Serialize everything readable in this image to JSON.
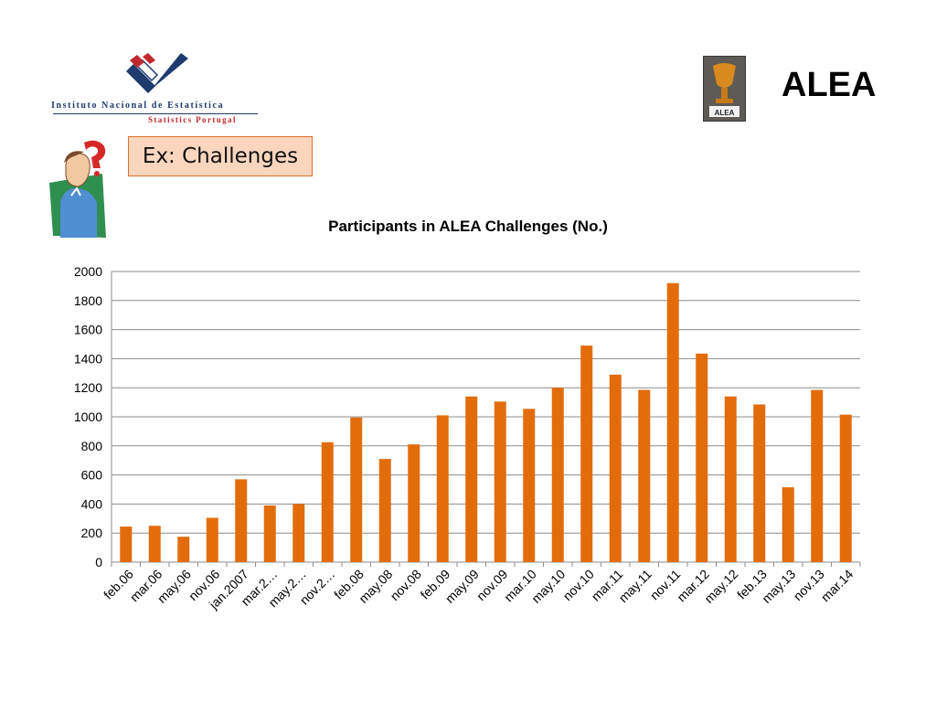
{
  "logo": {
    "org_name": "Instituto Nacional de Estatística",
    "org_subtitle": "Statistics Portugal"
  },
  "header": {
    "alea_title": "ALEA",
    "alea_badge_text": "ALEA"
  },
  "slide": {
    "tag": "Ex: Challenges"
  },
  "colors": {
    "bar": "#E36C0A",
    "logo_blue": "#1f3a6d",
    "logo_red": "#c0282d",
    "tag_fill": "#fbd6bf",
    "tag_border": "#e26e2a"
  },
  "icons": {
    "cartoon": "confused-person-icon",
    "badge": "alea-trophy-icon"
  },
  "chart_data": {
    "type": "bar",
    "title": "Participants in ALEA Challenges (No.)",
    "xlabel": "",
    "ylabel": "",
    "ylim": [
      0,
      2000
    ],
    "yticks": [
      0,
      200,
      400,
      600,
      800,
      1000,
      1200,
      1400,
      1600,
      1800,
      2000
    ],
    "grid": true,
    "legend": "none",
    "categories": [
      "feb.06",
      "mar.06",
      "may.06",
      "nov.06",
      "jan.2007",
      "mar.2…",
      "may.2…",
      "nov.2…",
      "feb.08",
      "may.08",
      "nov.08",
      "feb.09",
      "may.09",
      "nov.09",
      "mar.10",
      "may.10",
      "nov.10",
      "mar.11",
      "may.11",
      "nov.11",
      "mar.12",
      "may.12",
      "feb.13",
      "may.13",
      "nov.13",
      "mar.14"
    ],
    "values": [
      245,
      250,
      175,
      305,
      570,
      390,
      400,
      825,
      995,
      710,
      810,
      1010,
      1140,
      1105,
      1055,
      1200,
      1490,
      1290,
      1185,
      1920,
      1435,
      1140,
      1085,
      515,
      1185,
      1015
    ]
  }
}
